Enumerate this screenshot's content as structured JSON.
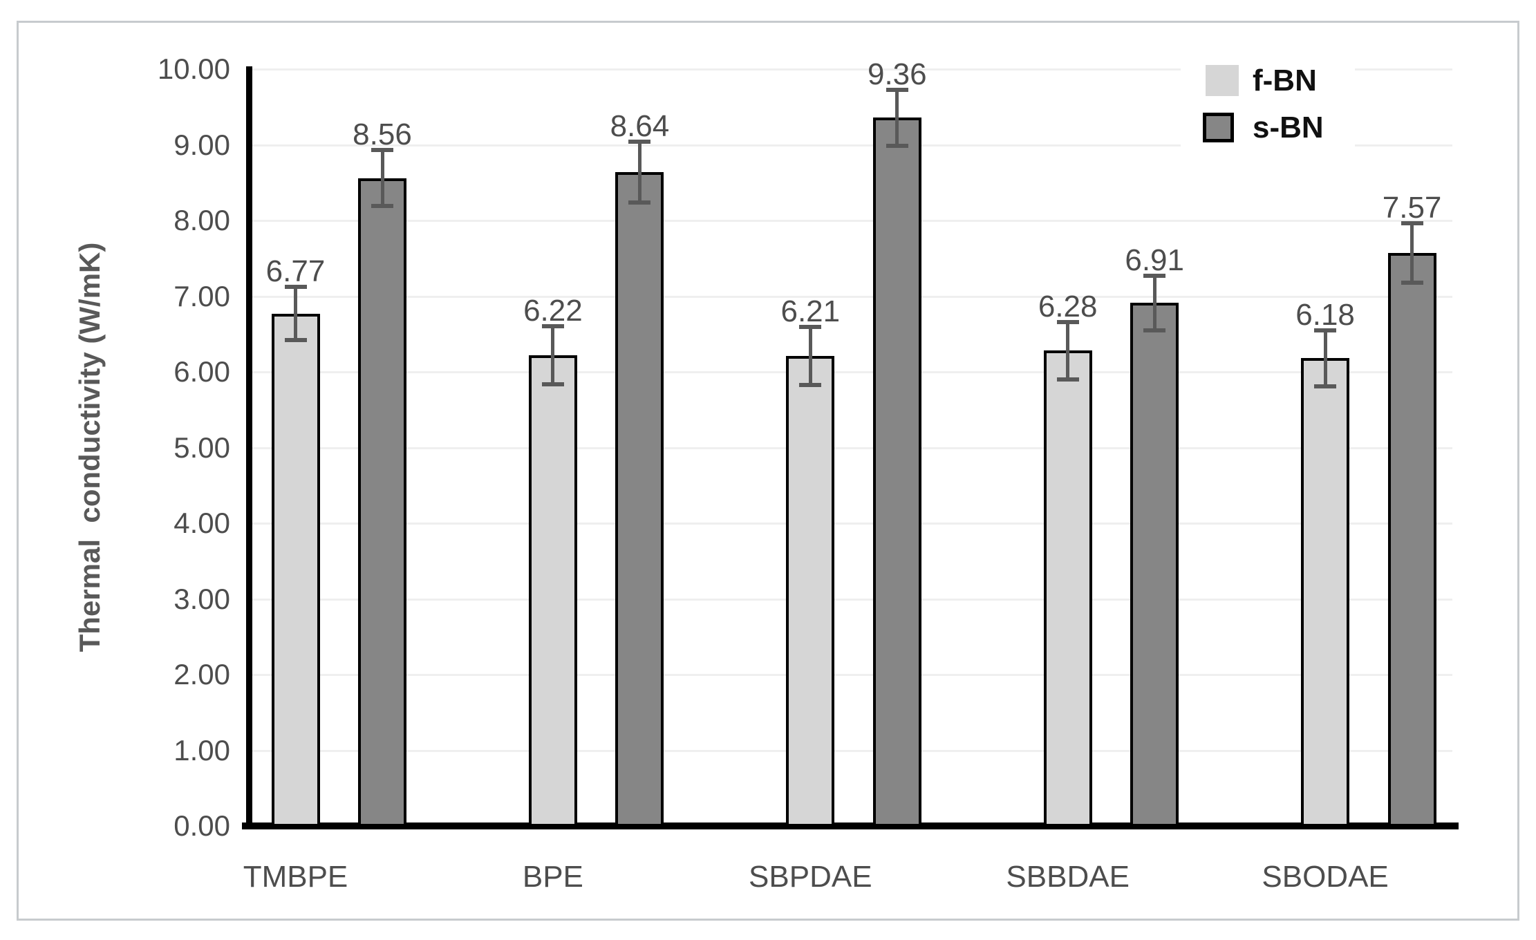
{
  "chart_data": {
    "type": "bar",
    "title": "",
    "xlabel": "",
    "ylabel": "Thermal  conductivity (W/mK)",
    "ylim": [
      0,
      10
    ],
    "ytick_step": 1,
    "yticks": [
      "0.00",
      "1.00",
      "2.00",
      "3.00",
      "4.00",
      "5.00",
      "6.00",
      "7.00",
      "8.00",
      "9.00",
      "10.00"
    ],
    "grid": true,
    "legend_position": "top-right",
    "categories": [
      "TMBPE",
      "BPE",
      "SBPDAE",
      "SBBDAE",
      "SBODAE"
    ],
    "series": [
      {
        "name": "f-BN",
        "color": "#d6d6d6",
        "values": [
          6.77,
          6.22,
          6.21,
          6.28,
          6.18
        ],
        "value_labels": [
          "6.77",
          "6.22",
          "6.21",
          "6.28",
          "6.18"
        ],
        "errors": [
          0.35,
          0.38,
          0.38,
          0.38,
          0.37
        ]
      },
      {
        "name": "s-BN",
        "color": "#868686",
        "values": [
          8.56,
          8.64,
          9.36,
          6.91,
          7.57
        ],
        "value_labels": [
          "8.56",
          "8.64",
          "9.36",
          "6.91",
          "7.57"
        ],
        "errors": [
          0.37,
          0.4,
          0.37,
          0.36,
          0.39
        ]
      }
    ],
    "bar_border_color": "#000000",
    "error_bar_color": "#595959",
    "gridline_color": "#efefef",
    "axis_color": "#000000",
    "label_color": "#4d4d4d"
  }
}
